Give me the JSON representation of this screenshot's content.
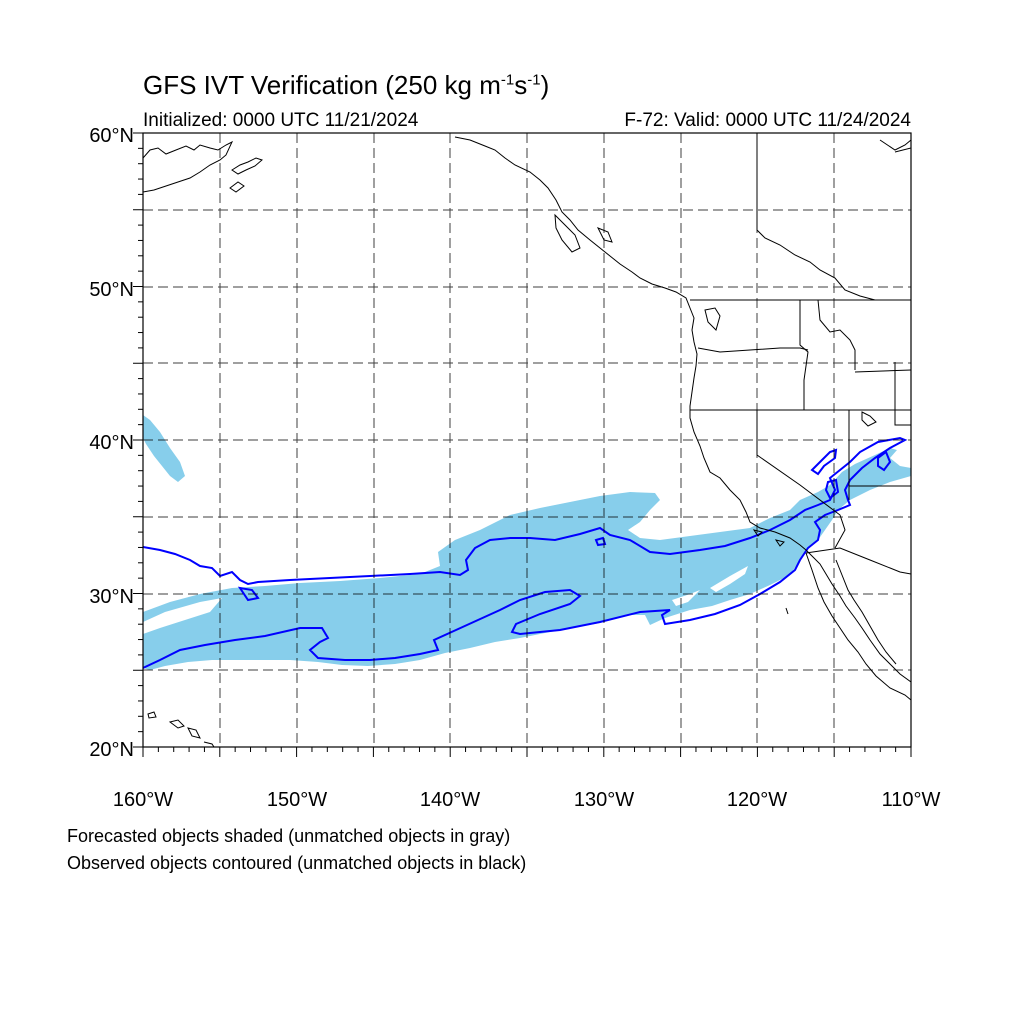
{
  "title": {
    "prefix": "GFS IVT Verification (250 kg m",
    "exp1": "-1",
    "mid": "s",
    "exp2": "-1",
    "suffix": ")"
  },
  "initialized": "Initialized: 0000 UTC 11/21/2024",
  "valid": "F-72: Valid: 0000 UTC 11/24/2024",
  "lat_labels": [
    "60°N",
    "50°N",
    "40°N",
    "30°N",
    "20°N"
  ],
  "lon_labels": [
    "160°W",
    "150°W",
    "140°W",
    "130°W",
    "120°W",
    "110°W"
  ],
  "notes": [
    "Forecasted objects shaded (unmatched objects in gray)",
    "Observed objects contoured (unmatched objects in black)"
  ],
  "colors": {
    "forecast_fill": "#87CEEB",
    "observed_contour": "#0000FF",
    "coastline": "#000000",
    "grid": "#000000"
  },
  "map": {
    "projection": "cylindrical equidistant",
    "lon_range": [
      -160,
      -110
    ],
    "lat_range": [
      20,
      60
    ],
    "grid_spacing_deg": 5,
    "grid_style": "dashed"
  }
}
